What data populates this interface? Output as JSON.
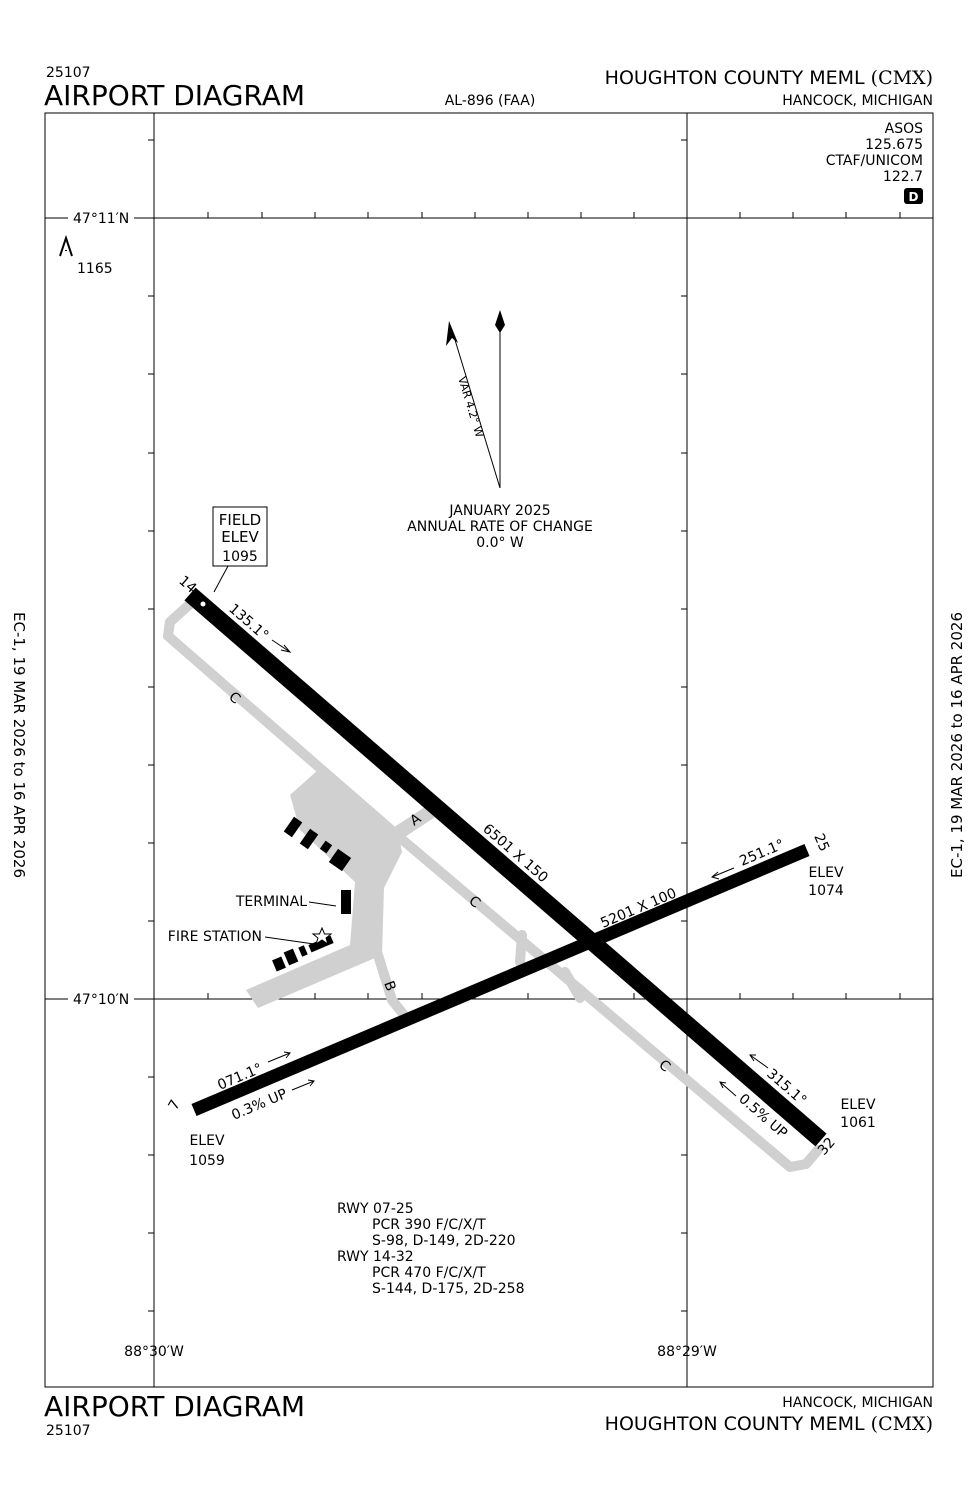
{
  "header": {
    "chart_number": "25107",
    "title": "AIRPORT DIAGRAM",
    "procedure": "AL-896 (FAA)",
    "airport": "HOUGHTON COUNTY MEML",
    "ident": "(CMX)",
    "location": "HANCOCK, MICHIGAN"
  },
  "effective_dates": "EC-1,  19 MAR 2026  to  16 APR 2026",
  "communications": [
    "ASOS",
    "125.675",
    "CTAF/UNICOM",
    "122.7",
    "D"
  ],
  "coordinates": {
    "latitudes": [
      "47°11′N",
      "47°10′N"
    ],
    "longitudes": [
      "88°30′W",
      "88°29′W"
    ]
  },
  "obstacle_elevation": "1165",
  "magnetic": {
    "variation": "VAR 4.2° W",
    "date": "JANUARY 2025",
    "label": "ANNUAL RATE OF CHANGE",
    "rate": "0.0° W"
  },
  "field_elevation": {
    "line1": "FIELD",
    "line2": "ELEV",
    "value": "1095"
  },
  "runways": {
    "rwy_14_32": {
      "end_14": "14",
      "end_32": "32",
      "heading_14": "135.1°",
      "heading_32": "315.1°",
      "dimensions": "6501 X 150",
      "gradient": "0.5% UP",
      "elev_label": "ELEV",
      "elev_32": "1061"
    },
    "rwy_07_25": {
      "end_7": "7",
      "end_25": "25",
      "heading_7": "071.1°",
      "heading_25": "251.1°",
      "dimensions": "5201 X 100",
      "gradient": "0.3% UP",
      "elev_label": "ELEV",
      "elev_7": "1059",
      "elev_25": "1074"
    }
  },
  "taxiways": {
    "parallel": "C",
    "connector_a": "A",
    "connector_b": "B"
  },
  "buildings": {
    "terminal": "TERMINAL",
    "fire_station": "FIRE STATION"
  },
  "runway_data": [
    "RWY 07-25",
    "PCR 390 F/C/X/T",
    "S-98, D-149, 2D-220",
    "RWY 14-32",
    "PCR 470 F/C/X/T",
    "S-144, D-175, 2D-258"
  ]
}
